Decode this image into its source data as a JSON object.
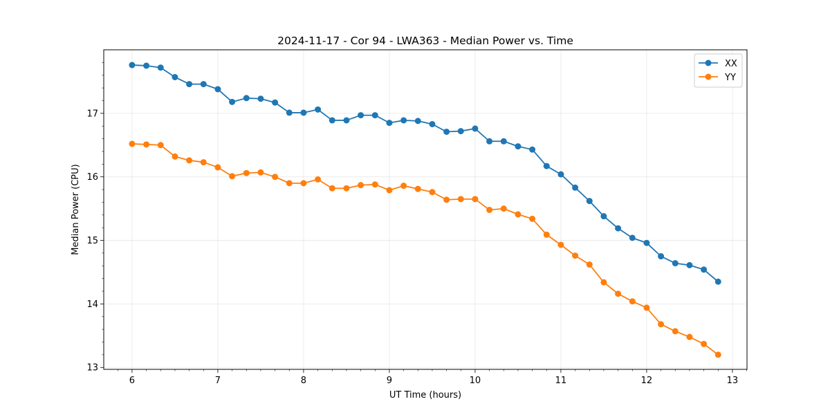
{
  "chart_data": {
    "type": "line",
    "title": "2024-11-17 - Cor 94 - LWA363 - Median Power vs. Time",
    "xlabel": "UT Time (hours)",
    "ylabel": "Median Power (CPU)",
    "xlim": [
      5.67,
      13.17
    ],
    "ylim": [
      12.97,
      18.0
    ],
    "xticks": [
      6,
      7,
      8,
      9,
      10,
      11,
      12,
      13
    ],
    "xtick_labels": [
      "6",
      "7",
      "8",
      "9",
      "10",
      "11",
      "12",
      "13"
    ],
    "yticks": [
      13,
      14,
      15,
      16,
      17
    ],
    "ytick_labels": [
      "13",
      "14",
      "15",
      "16",
      "17"
    ],
    "grid": true,
    "legend_position": "top-right",
    "x": [
      6.0,
      6.1667,
      6.3333,
      6.5,
      6.6667,
      6.8333,
      7.0,
      7.1667,
      7.3333,
      7.5,
      7.6667,
      7.8333,
      8.0,
      8.1667,
      8.3333,
      8.5,
      8.6667,
      8.8333,
      9.0,
      9.1667,
      9.3333,
      9.5,
      9.6667,
      9.8333,
      10.0,
      10.1667,
      10.3333,
      10.5,
      10.6667,
      10.8333,
      11.0,
      11.1667,
      11.3333,
      11.5,
      11.6667,
      11.8333,
      12.0,
      12.1667,
      12.3333,
      12.5,
      12.6667,
      12.8333
    ],
    "series": [
      {
        "name": "XX",
        "color": "#1f77b4",
        "values": [
          17.76,
          17.75,
          17.72,
          17.57,
          17.46,
          17.46,
          17.38,
          17.18,
          17.24,
          17.23,
          17.17,
          17.01,
          17.01,
          17.06,
          16.89,
          16.89,
          16.97,
          16.97,
          16.85,
          16.89,
          16.88,
          16.83,
          16.71,
          16.72,
          16.76,
          16.56,
          16.56,
          16.48,
          16.43,
          16.17,
          16.04,
          15.83,
          15.62,
          15.38,
          15.19,
          15.04,
          14.96,
          14.75,
          14.64,
          14.61,
          14.54,
          14.35
        ]
      },
      {
        "name": "YY",
        "color": "#ff7f0e",
        "values": [
          16.52,
          16.51,
          16.5,
          16.32,
          16.26,
          16.23,
          16.15,
          16.01,
          16.06,
          16.07,
          16.0,
          15.9,
          15.9,
          15.96,
          15.82,
          15.82,
          15.87,
          15.88,
          15.79,
          15.86,
          15.81,
          15.76,
          15.64,
          15.65,
          15.65,
          15.48,
          15.5,
          15.41,
          15.34,
          15.09,
          14.93,
          14.76,
          14.62,
          14.34,
          14.16,
          14.04,
          13.94,
          13.68,
          13.57,
          13.48,
          13.37,
          13.2
        ]
      }
    ]
  }
}
